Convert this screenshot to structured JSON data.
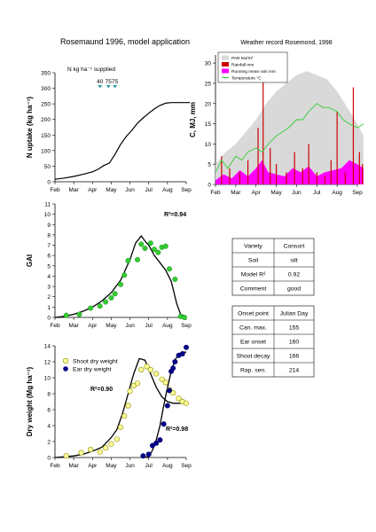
{
  "figure": {
    "title": "Rosemaund 1996, model application",
    "weather_title": "Weather record Rosemond, 1998"
  },
  "months": [
    "Feb",
    "Mar",
    "Apr",
    "May",
    "Jun",
    "Jul",
    "Aug",
    "Sep"
  ],
  "chart_data": [
    {
      "id": "n_uptake",
      "type": "line",
      "ylabel": "N uptake (kg ha⁻¹)",
      "ylim": [
        0,
        350
      ],
      "yticks": [
        0,
        50,
        100,
        150,
        200,
        250,
        300,
        350
      ],
      "annotation": "N kg ha⁻¹ supplied",
      "n_applications": [
        {
          "label": "40",
          "month": 2.4
        },
        {
          "label": "75",
          "month": 2.85
        },
        {
          "label": "75",
          "month": 3.2
        }
      ],
      "series": [
        {
          "x": [
            0,
            0.5,
            1,
            1.5,
            2,
            2.3,
            2.6,
            2.9,
            3.2,
            3.5,
            3.8,
            4.1,
            4.4,
            4.7,
            5,
            5.3,
            5.6,
            5.9,
            6.2,
            6.5,
            6.8,
            7,
            7.2
          ],
          "y": [
            8,
            12,
            17,
            24,
            32,
            40,
            52,
            60,
            88,
            120,
            145,
            165,
            188,
            205,
            220,
            234,
            245,
            252,
            254,
            254,
            254,
            254,
            254
          ]
        }
      ]
    },
    {
      "id": "weather",
      "type": "line",
      "ylabel": "C, MJ, mm",
      "ylim": [
        0,
        32
      ],
      "yticks": [
        0,
        5,
        10,
        15,
        20,
        25,
        30
      ],
      "legend": [
        "PAR MJ/m²",
        "Rainfall mm",
        "Running mean rain mm",
        "Temperature °C"
      ],
      "colors": {
        "par": "#d9d9d9",
        "rain": "#cc0000",
        "running_mean": "#ff00ff",
        "temperature": "#33cc33"
      },
      "rain_x": [
        0.3,
        0.7,
        1.2,
        1.6,
        2.1,
        2.35,
        2.7,
        3.0,
        3.5,
        3.9,
        4.3,
        4.6,
        5.0,
        5.4,
        5.7,
        6.0,
        6.4,
        6.8,
        7.1,
        7.25
      ],
      "rain_y": [
        7,
        4,
        3,
        6,
        14,
        27,
        9,
        5,
        3,
        8,
        4,
        10,
        3,
        2,
        6,
        18,
        3,
        24,
        8,
        5
      ],
      "running_mean_x": [
        0,
        0.4,
        0.8,
        1.2,
        1.6,
        2.0,
        2.3,
        2.6,
        3.0,
        3.4,
        3.8,
        4.2,
        4.6,
        5.0,
        5.4,
        5.8,
        6.2,
        6.6,
        7.0,
        7.3
      ],
      "running_mean_y": [
        1,
        2.5,
        1.5,
        3.5,
        2,
        4,
        6,
        3,
        2.5,
        2,
        4,
        3,
        4.5,
        2,
        3,
        3.5,
        4,
        6,
        5,
        4
      ],
      "temp_x": [
        0,
        0.3,
        0.6,
        1.0,
        1.3,
        1.6,
        2.0,
        2.3,
        2.6,
        3.0,
        3.3,
        3.6,
        4.0,
        4.3,
        4.6,
        5.0,
        5.3,
        5.6,
        6.0,
        6.3,
        6.6,
        7.0,
        7.3
      ],
      "temp_y": [
        3,
        6,
        4,
        7,
        6,
        8,
        9,
        8,
        10,
        12,
        13,
        14,
        16,
        16,
        18,
        20,
        19,
        19,
        18,
        16,
        15,
        14,
        15
      ],
      "par_x": [
        0,
        0.5,
        1,
        1.5,
        2,
        2.5,
        3,
        3.5,
        4,
        4.5,
        5,
        5.5,
        6,
        6.5,
        7,
        7.3
      ],
      "par_y": [
        5,
        8,
        10,
        13,
        16,
        20,
        23,
        25,
        27,
        28,
        27,
        26,
        23,
        19,
        15,
        12
      ]
    },
    {
      "id": "gai",
      "type": "scatter",
      "ylabel": "GAI",
      "ylim": [
        0,
        11
      ],
      "yticks": [
        0,
        1,
        2,
        3,
        4,
        5,
        6,
        7,
        8,
        9,
        10,
        11
      ],
      "r2": "R²=0.94",
      "observed_x": [
        0.6,
        1.3,
        1.9,
        2.4,
        2.7,
        3.0,
        3.2,
        3.5,
        3.7,
        3.9,
        4.4,
        4.6,
        4.8,
        5.1,
        5.3,
        5.5,
        5.7,
        5.9,
        6.1,
        6.4,
        6.7,
        6.9
      ],
      "observed_y": [
        0.2,
        0.3,
        0.9,
        1.1,
        1.5,
        1.9,
        2.3,
        3.2,
        4.1,
        5.5,
        5.6,
        7.1,
        6.7,
        7.2,
        6.6,
        6.3,
        6.8,
        6.9,
        4.7,
        3.7,
        0.1,
        0.0
      ],
      "model_x": [
        0,
        0.5,
        1,
        1.5,
        2,
        2.5,
        3,
        3.5,
        4,
        4.3,
        4.6,
        4.8,
        5,
        5.3,
        5.6,
        5.9,
        6.2,
        6.5,
        6.7,
        7
      ],
      "model_y": [
        0,
        0.1,
        0.3,
        0.6,
        1.0,
        1.6,
        2.4,
        3.6,
        5.6,
        7.2,
        7.9,
        7.4,
        7.0,
        6.0,
        5.3,
        4.6,
        3.5,
        1.3,
        0.3,
        0.1
      ]
    },
    {
      "id": "dry_weight",
      "type": "scatter",
      "ylabel": "Dry weight (Mg ha⁻¹)",
      "ylim": [
        0,
        14
      ],
      "yticks": [
        0,
        2,
        4,
        6,
        8,
        10,
        12,
        14
      ],
      "r2_shoot": "R²=0.90",
      "r2_ear": "R²=0.98",
      "series": [
        {
          "name": "Shoot dry weight",
          "color": "#ffff99",
          "x": [
            0.6,
            1.4,
            1.9,
            2.4,
            2.7,
            3.0,
            3.3,
            3.5,
            3.7,
            3.9,
            4.0,
            4.2,
            4.4,
            4.6,
            4.9,
            5.1,
            5.4,
            5.7,
            5.9,
            6.1,
            6.3,
            6.6,
            6.8,
            7.0
          ],
          "y": [
            0.2,
            0.6,
            1.0,
            0.7,
            1.2,
            1.7,
            2.3,
            3.8,
            5.2,
            6.5,
            8.3,
            9.0,
            9.3,
            11.0,
            11.4,
            11.0,
            10.5,
            9.8,
            9.4,
            8.5,
            8.1,
            7.4,
            7.0,
            6.8
          ]
        },
        {
          "name": "Ear dry weight",
          "color": "#00008b",
          "x": [
            4.7,
            5.0,
            5.2,
            5.4,
            5.6,
            5.8,
            6.0,
            6.1,
            6.2,
            6.3,
            6.4,
            6.6,
            6.8,
            7.0
          ],
          "y": [
            0.2,
            0.4,
            1.5,
            1.8,
            2.2,
            4.2,
            6.5,
            8.4,
            10.8,
            11.2,
            12.0,
            12.8,
            13.0,
            13.8
          ]
        }
      ],
      "model_shoot_x": [
        0,
        0.5,
        1,
        1.5,
        2,
        2.5,
        3,
        3.3,
        3.6,
        3.9,
        4.2,
        4.5,
        4.8,
        5.1,
        5.4,
        5.7,
        6.0,
        6.3,
        6.6,
        7.0
      ],
      "model_shoot_y": [
        0,
        0.1,
        0.2,
        0.4,
        0.8,
        1.3,
        2.5,
        3.5,
        5.5,
        8.0,
        10.5,
        12.4,
        12.2,
        10.5,
        8.8,
        7.6,
        7.0,
        6.8,
        6.8,
        6.8
      ],
      "model_ear_x": [
        4.7,
        5.0,
        5.2,
        5.4,
        5.6,
        5.8,
        6.0,
        6.2,
        6.4,
        6.6,
        6.8,
        7.0
      ],
      "model_ear_y": [
        0,
        0.1,
        0.9,
        2.2,
        4.0,
        6.5,
        8.8,
        10.8,
        12.2,
        13.0,
        13.2,
        13.2
      ]
    }
  ],
  "variety_table": {
    "rows": [
      [
        "Variety",
        "Consort"
      ],
      [
        "Soil",
        "silt"
      ],
      [
        "Model R²",
        "0.92"
      ],
      [
        "Comment",
        "good"
      ]
    ]
  },
  "onset_table": {
    "rows": [
      [
        "Onset point",
        "Julian Day"
      ],
      [
        "Can. max.",
        "155"
      ],
      [
        "Ear onset",
        "160"
      ],
      [
        "Shoot decay",
        "166"
      ],
      [
        "Rap. sen.",
        "214"
      ]
    ]
  }
}
